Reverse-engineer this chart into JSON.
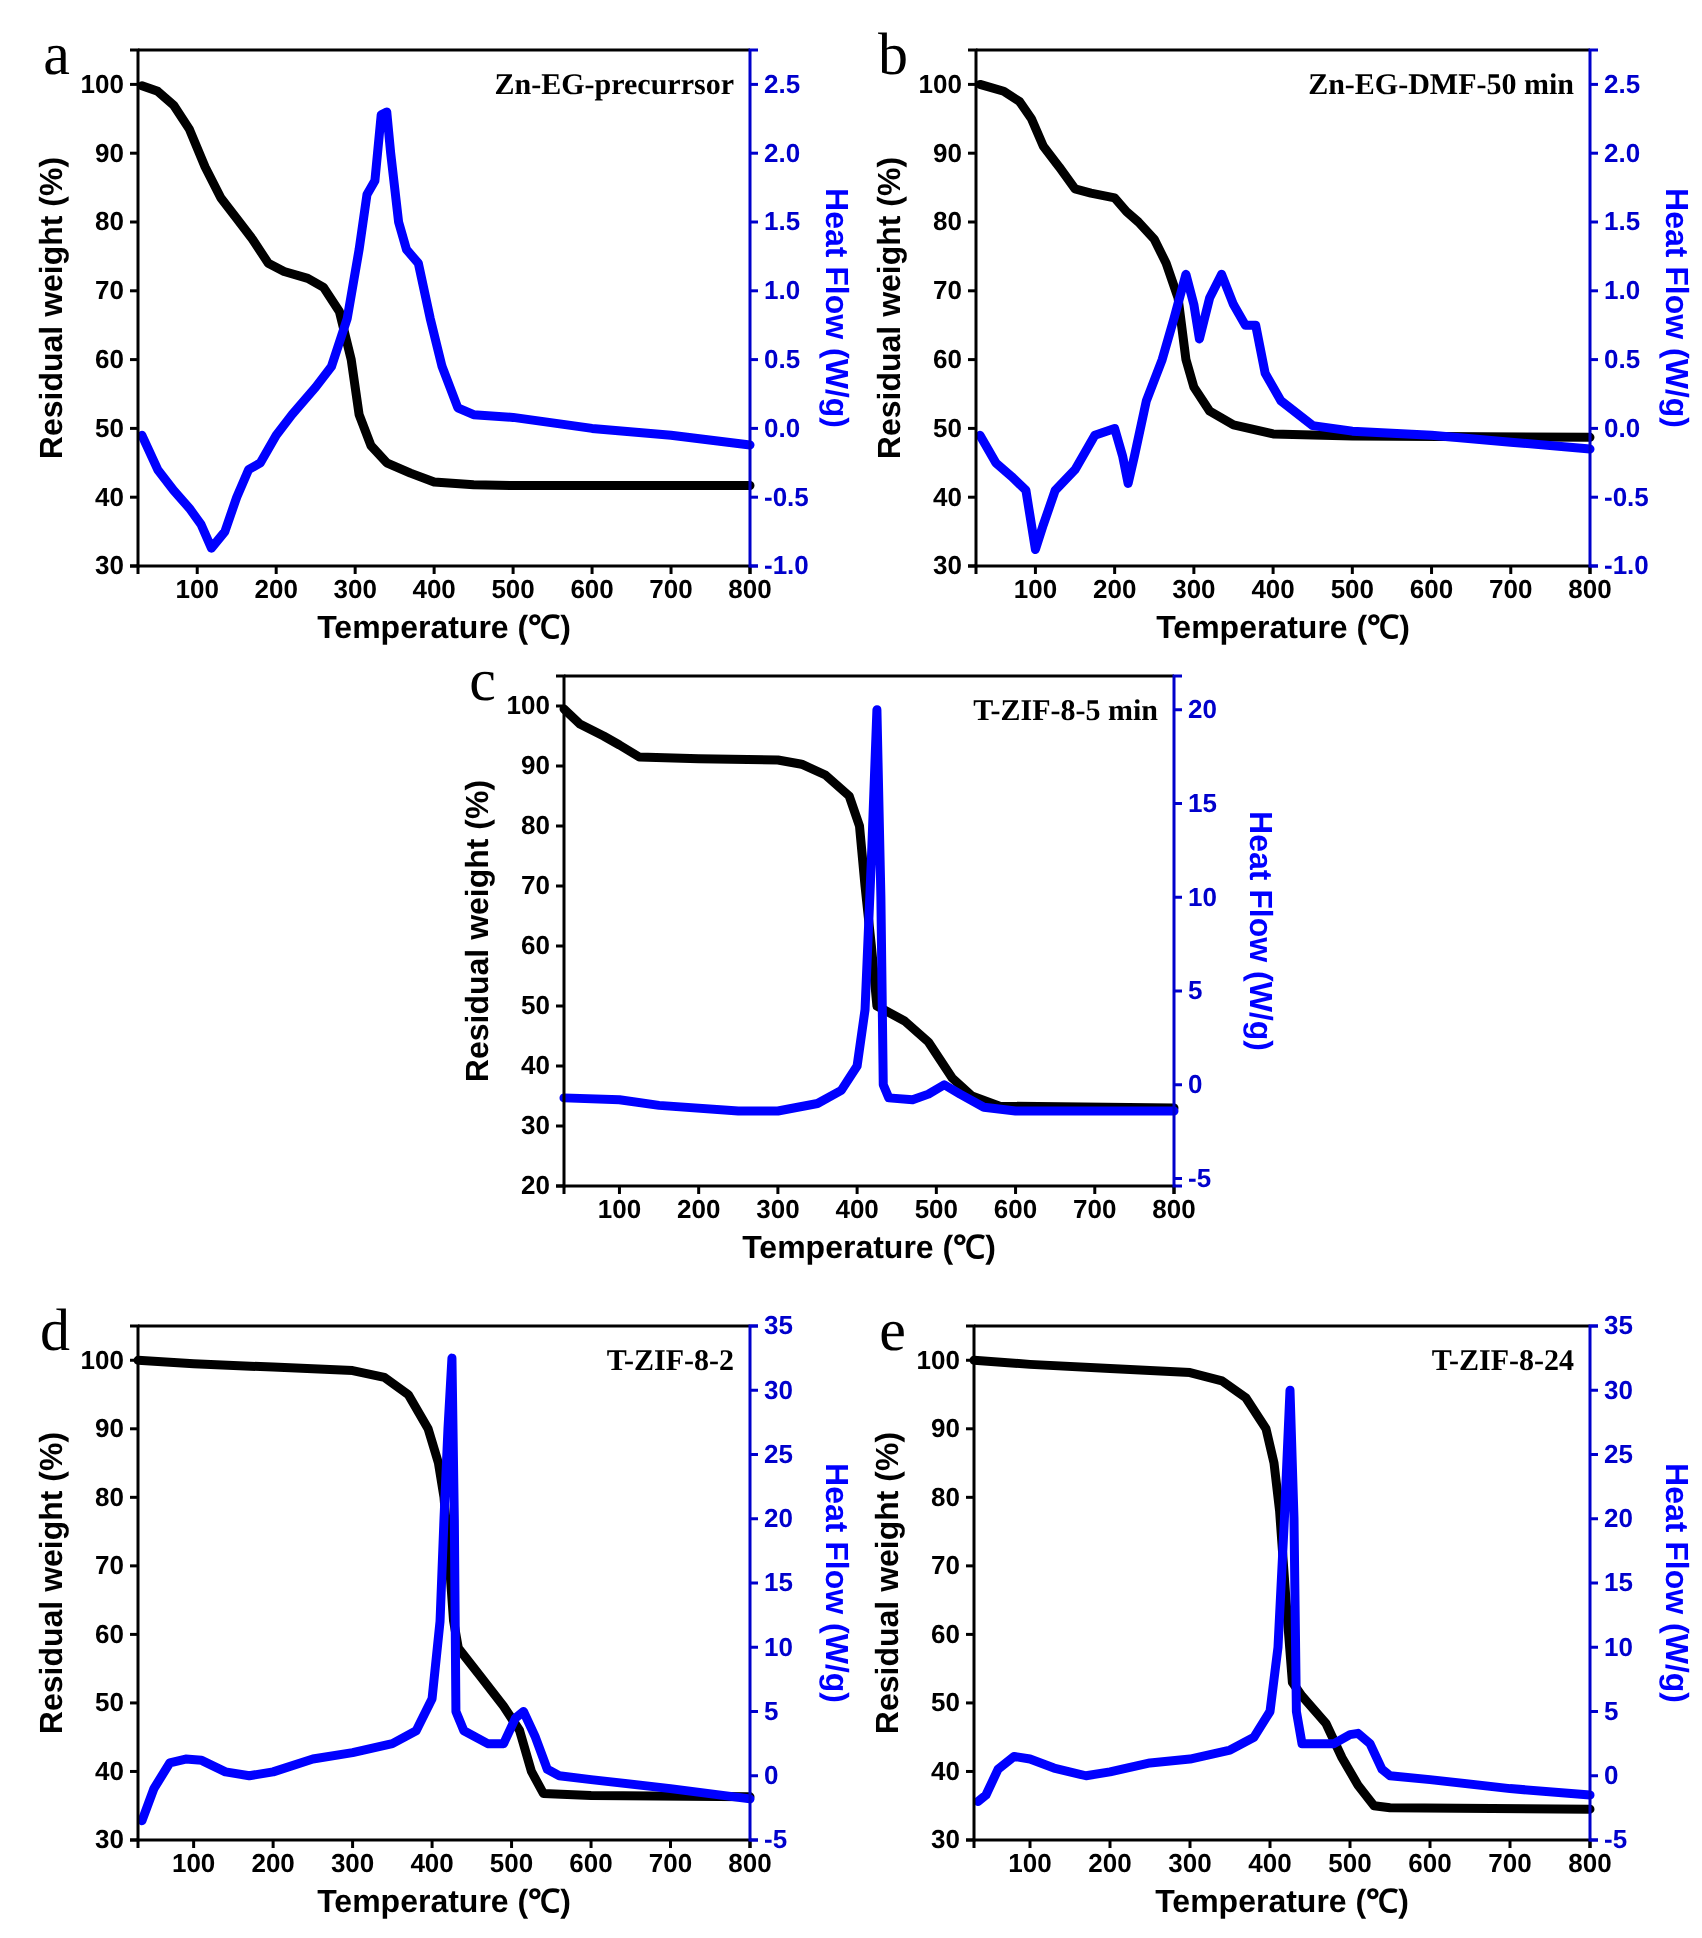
{
  "chart_data": [
    {
      "type": "line",
      "xlabel": "Temperature (℃)",
      "ylabel": "Residual weight (%)",
      "y2label": "Heat Flow  (W/g)",
      "annotations": [
        "a",
        "Zn-EG-precurrsor"
      ],
      "xlim": [
        25,
        800
      ],
      "ylim": [
        30,
        105
      ],
      "y2lim": [
        -1,
        2.75
      ],
      "xticks": [
        100,
        200,
        300,
        400,
        500,
        600,
        700,
        800
      ],
      "yticks": [
        30,
        40,
        50,
        60,
        70,
        80,
        90,
        100
      ],
      "y2ticks": [
        {
          "value": -1,
          "label": "-1.0"
        },
        {
          "value": -0.5,
          "label": "-0.5"
        },
        {
          "value": 0,
          "label": "0.0"
        },
        {
          "value": 0.5,
          "label": "0.5"
        },
        {
          "value": 1,
          "label": "1.0"
        },
        {
          "value": 1.5,
          "label": "1.5"
        },
        {
          "value": 2,
          "label": "2.0"
        },
        {
          "value": 2.5,
          "label": "2.5"
        }
      ],
      "series": [
        {
          "color": "#000000",
          "x": [
            30,
            50,
            70,
            90,
            110,
            130,
            150,
            170,
            190,
            210,
            240,
            260,
            280,
            295,
            305,
            320,
            340,
            370,
            400,
            450,
            500,
            800
          ],
          "values": [
            99.8,
            99,
            97,
            93.5,
            88,
            83.5,
            80.5,
            77.5,
            74,
            72.8,
            71.8,
            70.5,
            67,
            60,
            52,
            47.5,
            45,
            43.5,
            42.2,
            41.8,
            41.7,
            41.7
          ]
        },
        {
          "color": "#0000ff",
          "axis": "y2",
          "x": [
            30,
            50,
            70,
            90,
            105,
            118,
            135,
            150,
            165,
            180,
            200,
            220,
            250,
            270,
            290,
            305,
            315,
            325,
            333,
            340,
            345,
            355,
            365,
            380,
            395,
            410,
            430,
            450,
            500,
            600,
            700,
            800
          ],
          "values": [
            -0.05,
            -0.3,
            -0.45,
            -0.58,
            -0.7,
            -0.87,
            -0.75,
            -0.5,
            -0.3,
            -0.25,
            -0.05,
            0.1,
            0.3,
            0.45,
            0.8,
            1.3,
            1.7,
            1.8,
            2.28,
            2.3,
            2.0,
            1.5,
            1.3,
            1.2,
            0.8,
            0.45,
            0.15,
            0.1,
            0.08,
            0.0,
            -0.05,
            -0.12
          ]
        }
      ]
    },
    {
      "type": "line",
      "xlabel": "Temperature (℃)",
      "ylabel": "Residual weight (%)",
      "y2label": "Heat Flow  (W/g)",
      "annotations": [
        "b",
        "Zn-EG-DMF-50 min"
      ],
      "xlim": [
        25,
        800
      ],
      "ylim": [
        30,
        105
      ],
      "y2lim": [
        -1,
        2.75
      ],
      "xticks": [
        100,
        200,
        300,
        400,
        500,
        600,
        700,
        800
      ],
      "yticks": [
        30,
        40,
        50,
        60,
        70,
        80,
        90,
        100
      ],
      "y2ticks": [
        {
          "value": -1,
          "label": "-1.0"
        },
        {
          "value": -0.5,
          "label": "-0.5"
        },
        {
          "value": 0,
          "label": "0.0"
        },
        {
          "value": 0.5,
          "label": "0.5"
        },
        {
          "value": 1,
          "label": "1.0"
        },
        {
          "value": 1.5,
          "label": "1.5"
        },
        {
          "value": 2,
          "label": "2.0"
        },
        {
          "value": 2.5,
          "label": "2.5"
        }
      ],
      "series": [
        {
          "color": "#000000",
          "x": [
            30,
            60,
            80,
            95,
            110,
            130,
            150,
            170,
            200,
            215,
            230,
            250,
            265,
            280,
            290,
            300,
            320,
            350,
            400,
            500,
            800
          ],
          "values": [
            100,
            99,
            97.5,
            95,
            91,
            88,
            84.8,
            84.2,
            83.5,
            81.5,
            80,
            77.5,
            74,
            69,
            60,
            56,
            52.5,
            50.5,
            49.2,
            48.9,
            48.7
          ]
        },
        {
          "color": "#0000ff",
          "axis": "y2",
          "x": [
            30,
            50,
            70,
            88,
            100,
            110,
            125,
            150,
            175,
            200,
            210,
            217,
            225,
            240,
            260,
            275,
            290,
            300,
            307,
            320,
            335,
            350,
            365,
            378,
            390,
            410,
            450,
            500,
            600,
            700,
            800
          ],
          "values": [
            -0.05,
            -0.25,
            -0.35,
            -0.45,
            -0.88,
            -0.7,
            -0.45,
            -0.3,
            -0.05,
            0.0,
            -0.2,
            -0.4,
            -0.2,
            0.2,
            0.5,
            0.8,
            1.12,
            0.9,
            0.65,
            0.95,
            1.12,
            0.9,
            0.75,
            0.75,
            0.4,
            0.2,
            0.02,
            -0.02,
            -0.05,
            -0.1,
            -0.15
          ]
        }
      ]
    },
    {
      "type": "line",
      "xlabel": "Temperature (℃)",
      "ylabel": "Residual weight (%)",
      "y2label": "Heat Flow  (W/g)",
      "annotations": [
        "c",
        "T-ZIF-8-5 min"
      ],
      "xlim": [
        30,
        800
      ],
      "ylim": [
        20,
        105
      ],
      "y2lim": [
        -5.4,
        21.8
      ],
      "xticks": [
        100,
        200,
        300,
        400,
        500,
        600,
        700,
        800
      ],
      "yticks": [
        20,
        30,
        40,
        50,
        60,
        70,
        80,
        90,
        100
      ],
      "y2ticks": [
        -5,
        0,
        5,
        10,
        15,
        20
      ],
      "series": [
        {
          "color": "#000000",
          "x": [
            30,
            50,
            80,
            100,
            125,
            200,
            300,
            330,
            360,
            390,
            403,
            410,
            418,
            425,
            460,
            490,
            520,
            545,
            580,
            800
          ],
          "values": [
            99.5,
            97,
            95,
            93.5,
            91.5,
            91.2,
            91,
            90.3,
            88.5,
            85,
            80,
            70,
            60,
            50,
            47.5,
            44,
            38,
            35,
            33.3,
            33
          ]
        },
        {
          "color": "#0000ff",
          "axis": "y2",
          "x": [
            30,
            100,
            150,
            250,
            300,
            350,
            380,
            400,
            410,
            418,
            425,
            430,
            433,
            440,
            470,
            490,
            510,
            530,
            560,
            600,
            800
          ],
          "values": [
            -0.7,
            -0.8,
            -1.1,
            -1.4,
            -1.4,
            -1,
            -0.3,
            1,
            4,
            12,
            20,
            10,
            0,
            -0.7,
            -0.8,
            -0.5,
            0,
            -0.5,
            -1.2,
            -1.4,
            -1.4
          ]
        }
      ]
    },
    {
      "type": "line",
      "xlabel": "Temperature (℃)",
      "ylabel": "Residual weight (%)",
      "y2label": "Heat Flow  (W/g)",
      "annotations": [
        "d",
        "T-ZIF-8-2"
      ],
      "xlim": [
        30,
        800
      ],
      "ylim": [
        30,
        105
      ],
      "y2lim": [
        -5,
        35
      ],
      "xticks": [
        100,
        200,
        300,
        400,
        500,
        600,
        700,
        800
      ],
      "yticks": [
        30,
        40,
        50,
        60,
        70,
        80,
        90,
        100
      ],
      "y2ticks": [
        -5,
        0,
        5,
        10,
        15,
        20,
        25,
        30,
        35
      ],
      "series": [
        {
          "color": "#000000",
          "x": [
            30,
            100,
            200,
            300,
            340,
            370,
            395,
            408,
            415,
            422,
            427,
            433,
            460,
            490,
            510,
            525,
            540,
            600,
            800
          ],
          "values": [
            100,
            99.5,
            99,
            98.5,
            97.5,
            95,
            90,
            85,
            80,
            70,
            62,
            58,
            54,
            49.5,
            46,
            40,
            36.8,
            36.5,
            36.3
          ]
        },
        {
          "color": "#0000ff",
          "axis": "y2",
          "x": [
            35,
            50,
            70,
            90,
            110,
            140,
            170,
            200,
            250,
            300,
            350,
            380,
            400,
            410,
            415,
            420,
            425,
            428,
            430,
            440,
            470,
            490,
            505,
            515,
            530,
            545,
            560,
            600,
            700,
            800
          ],
          "values": [
            -3.5,
            -1,
            1,
            1.3,
            1.2,
            0.3,
            0,
            0.3,
            1.3,
            1.8,
            2.5,
            3.5,
            6,
            12,
            20,
            27,
            32.5,
            20,
            5,
            3.5,
            2.5,
            2.5,
            4.5,
            5,
            3,
            0.5,
            0,
            -0.3,
            -1,
            -1.8
          ]
        }
      ]
    },
    {
      "type": "line",
      "xlabel": "Temperature (℃)",
      "ylabel": "Residual weight (%)",
      "y2label": "Heat Flow  (W/g)",
      "annotations": [
        "e",
        "T-ZIF-8-24"
      ],
      "xlim": [
        30,
        800
      ],
      "ylim": [
        30,
        105
      ],
      "y2lim": [
        -5,
        35
      ],
      "xticks": [
        100,
        200,
        300,
        400,
        500,
        600,
        700,
        800
      ],
      "yticks": [
        30,
        40,
        50,
        60,
        70,
        80,
        90,
        100
      ],
      "y2ticks": [
        -5,
        0,
        5,
        10,
        15,
        20,
        25,
        30,
        35
      ],
      "series": [
        {
          "color": "#000000",
          "x": [
            30,
            100,
            200,
            300,
            340,
            370,
            395,
            405,
            412,
            420,
            428,
            440,
            470,
            490,
            510,
            530,
            550,
            800
          ],
          "values": [
            100,
            99.4,
            98.8,
            98.2,
            97,
            94.5,
            90,
            85,
            78,
            65,
            53,
            51,
            47,
            42,
            38,
            35,
            34.7,
            34.5
          ]
        },
        {
          "color": "#0000ff",
          "axis": "y2",
          "x": [
            35,
            45,
            60,
            80,
            100,
            130,
            170,
            200,
            250,
            300,
            350,
            380,
            400,
            410,
            418,
            425,
            430,
            433,
            440,
            480,
            500,
            510,
            525,
            540,
            550,
            600,
            700,
            800
          ],
          "values": [
            -2,
            -1.5,
            0.5,
            1.5,
            1.3,
            0.6,
            0,
            0.3,
            1,
            1.3,
            2,
            3,
            5,
            10,
            20,
            30,
            20,
            5,
            2.5,
            2.5,
            3.2,
            3.3,
            2.5,
            0.5,
            0,
            -0.3,
            -1,
            -1.5
          ]
        }
      ]
    }
  ]
}
